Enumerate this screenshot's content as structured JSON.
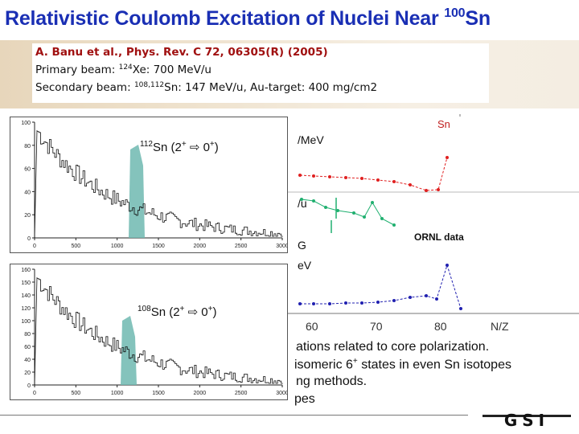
{
  "slide": {
    "title": "Relativistic Coulomb Excitation of Nuclei Near",
    "title_sup": "100",
    "title_tail": "Sn"
  },
  "reference": {
    "line1": "A. Banu et al., Phys. Rev. C 72, 06305(R) (2005)",
    "line2_a": "Primary beam: ",
    "line2_sup": "124",
    "line2_b": "Xe: 700 MeV/u",
    "line3_a": "Secondary beam: ",
    "line3_sup": "108,112",
    "line3_b": "Sn: 147 MeV/u,  Au-target: 400 mg/cm2"
  },
  "spectra": {
    "top": {
      "label_sup": "112",
      "label_text": "Sn (2",
      "label_plus1": "+",
      "label_arrow": "⇨",
      "label_end": " 0",
      "label_plus2": "+",
      "label_close": ")",
      "yticks": [
        "100",
        "80",
        "60",
        "40",
        "20",
        "0"
      ],
      "xticks": [
        "0",
        "500",
        "1000",
        "1500",
        "2000",
        "2500",
        "3000"
      ]
    },
    "bottom": {
      "label_sup": "108",
      "label_text": "Sn (2",
      "label_plus1": "+",
      "label_arrow": "⇨",
      "label_end": " 0",
      "label_plus2": "+",
      "label_close": ")",
      "yticks": [
        "160",
        "150",
        "140",
        "120",
        "100",
        "80",
        "60",
        "40",
        "20",
        "0"
      ],
      "xticks": [
        "0",
        "500",
        "1000",
        "1500",
        "2000",
        "2500",
        "3000"
      ]
    }
  },
  "right_plot": {
    "label_sn": "Sn",
    "label_mev_top": "/MeV",
    "label_u": "/u",
    "label_g": "G",
    "label_ev": "eV",
    "ornl": "ORNL data",
    "xticks": [
      "60",
      "70",
      "80"
    ],
    "xlabel": "N/Z",
    "chart_data": {
      "type": "line",
      "series": [
        {
          "color": "#e02020",
          "points": [
            [
              373,
              218
            ],
            [
              390,
              219
            ],
            [
              410,
              220
            ],
            [
              430,
              221
            ],
            [
              450,
              222
            ],
            [
              470,
              224
            ],
            [
              490,
              226
            ],
            [
              510,
              230
            ],
            [
              530,
              237
            ],
            [
              545,
              236
            ],
            [
              556,
              196
            ]
          ]
        },
        {
          "color": "#20b070",
          "points": [
            [
              375,
              248
            ],
            [
              390,
              250
            ],
            [
              405,
              258
            ],
            [
              420,
              262
            ],
            [
              440,
              265
            ],
            [
              453,
              270
            ],
            [
              463,
              252
            ],
            [
              475,
              272
            ],
            [
              490,
              280
            ]
          ]
        },
        {
          "color": "#2020b0",
          "points": [
            [
              373,
              378
            ],
            [
              390,
              378
            ],
            [
              410,
              378
            ],
            [
              430,
              377
            ],
            [
              450,
              377
            ],
            [
              470,
              376
            ],
            [
              490,
              374
            ],
            [
              510,
              370
            ],
            [
              530,
              368
            ],
            [
              543,
              372
            ],
            [
              556,
              330
            ],
            [
              573,
              384
            ]
          ]
        }
      ]
    }
  },
  "body_text": {
    "line1": "ations related to core polarization.",
    "line2": "isomeric 6",
    "line2_sup": "+",
    "line2_tail": " states in even Sn isotopes",
    "line3": "ng methods.",
    "line4": "pes"
  },
  "logo": {
    "text": "GSI"
  }
}
